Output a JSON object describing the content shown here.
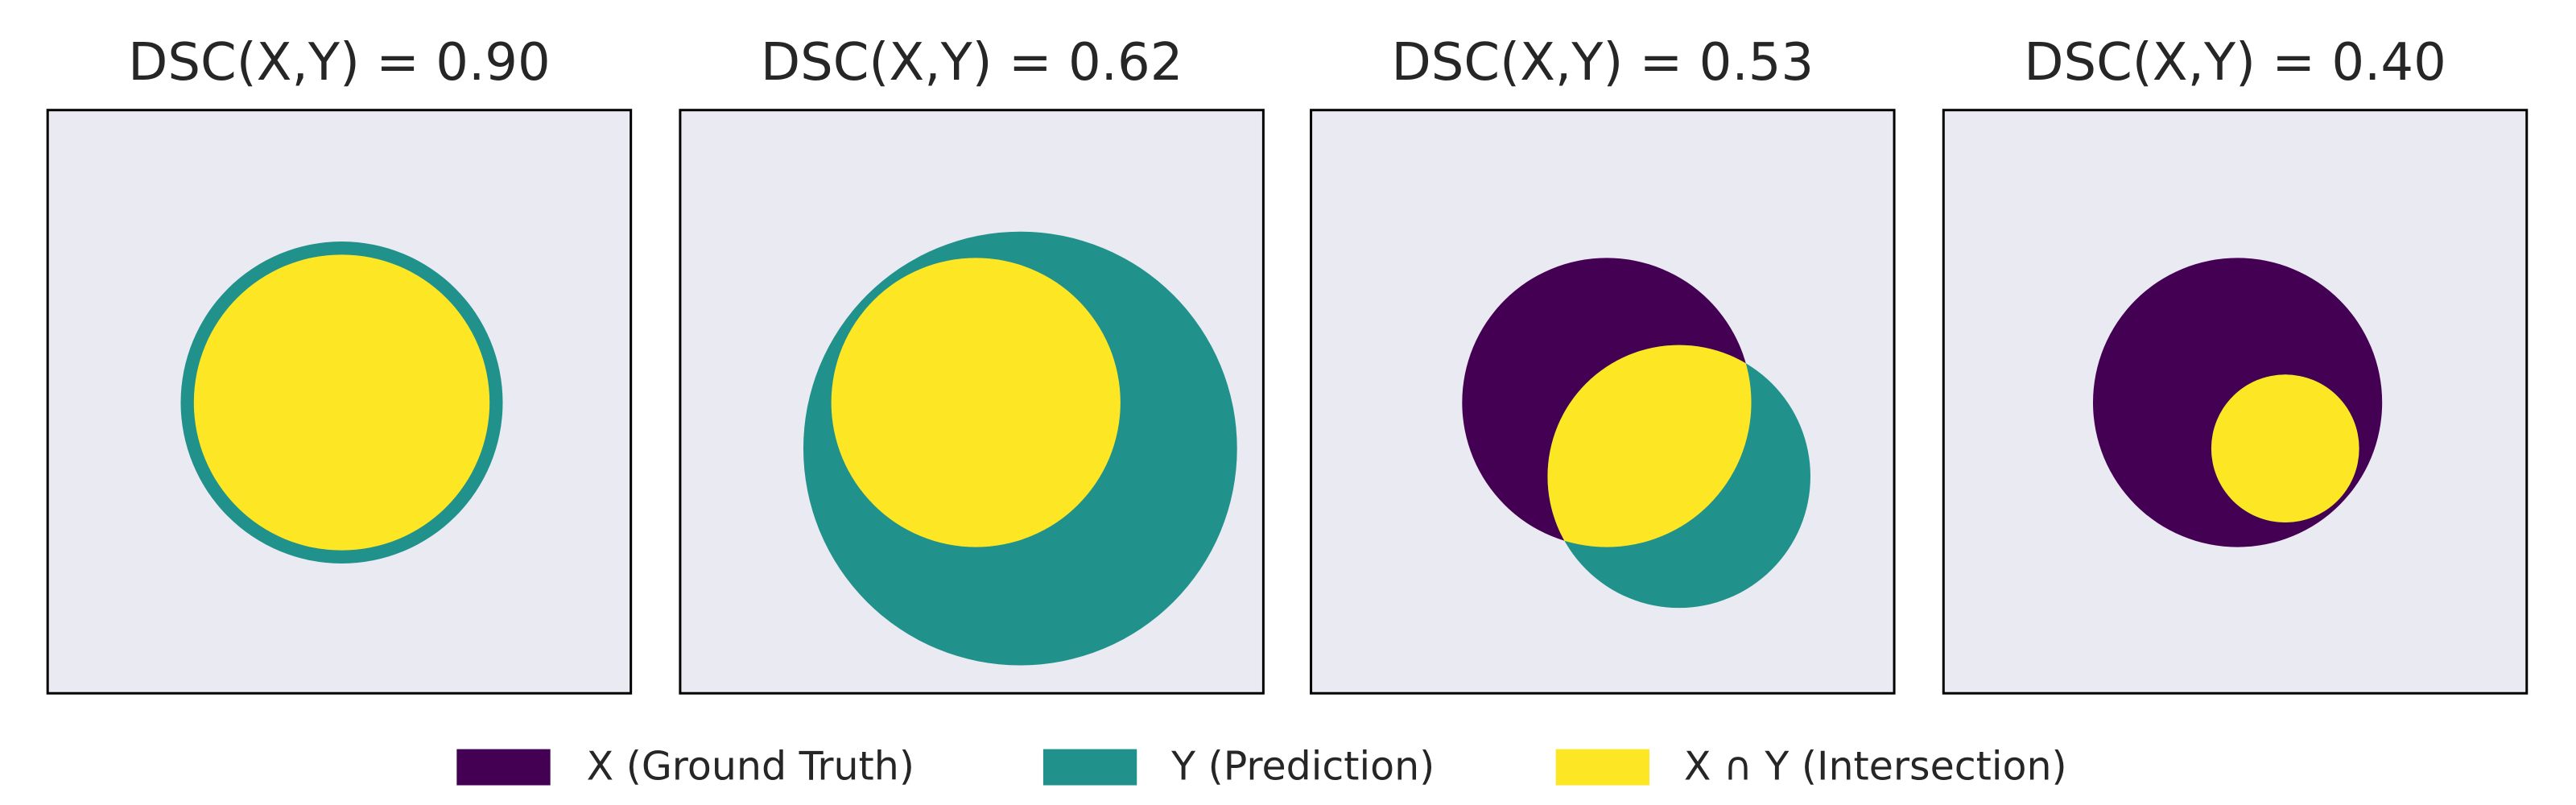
{
  "panels": [
    {
      "title": "DSC(X,Y) = 0.90"
    },
    {
      "title": "DSC(X,Y) = 0.62"
    },
    {
      "title": "DSC(X,Y) = 0.53"
    },
    {
      "title": "DSC(X,Y) = 0.40"
    }
  ],
  "legend": [
    {
      "label": "X (Ground Truth)",
      "color": "#440154"
    },
    {
      "label": "Y (Prediction)",
      "color": "#21918c"
    },
    {
      "label": "X ∩ Y (Intersection)",
      "color": "#fde725"
    }
  ]
}
